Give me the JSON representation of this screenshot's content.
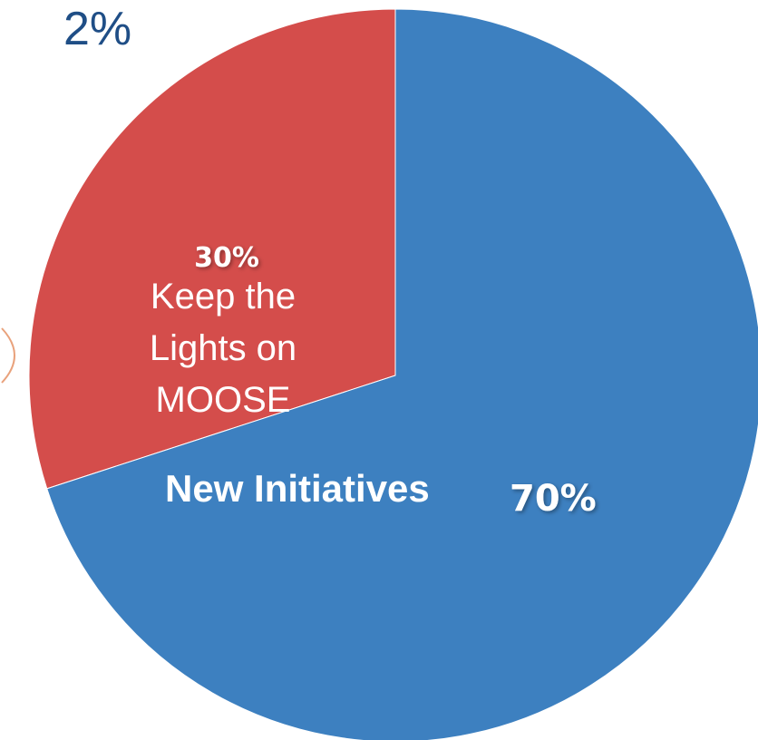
{
  "corner_text": "2%",
  "chart_data": {
    "type": "pie",
    "title": "",
    "slices": [
      {
        "name_lines": [
          "Keep the",
          "Lights on",
          "MOOSE"
        ],
        "value": 30,
        "value_label": "30%",
        "color": "#d44d4b"
      },
      {
        "name_lines": [
          "New Initiatives"
        ],
        "value": 70,
        "value_label": "70%",
        "color": "#3d80c0"
      }
    ],
    "start_angle_deg": -90,
    "direction": "counterclockwise"
  },
  "colors": {
    "background": "#ffffff",
    "corner_text": "#1f4e86",
    "label_text": "#ffffff",
    "edge_arc": "#e9a27c"
  }
}
